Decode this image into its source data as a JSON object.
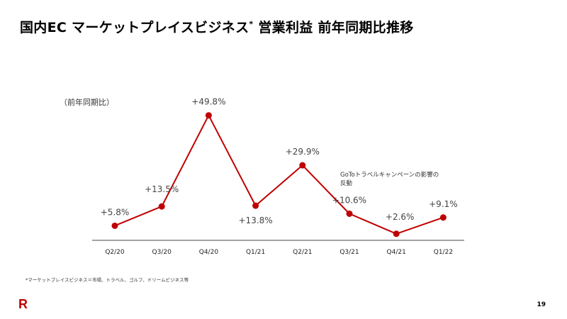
{
  "slide": {
    "title": "国内EC マーケットプレイスビジネス",
    "title_mark": "*",
    "title_suffix": " 営業利益 前年同期比推移",
    "footnote": "*マーケットプレイスビジネス＝市場、トラベル、ゴルフ、ドリームビジネス等",
    "page_number": "19",
    "logo": "R"
  },
  "chart_data": {
    "type": "line",
    "unit_label": "（前年同期比）",
    "categories": [
      "Q2/20",
      "Q3/20",
      "Q4/20",
      "Q1/21",
      "Q2/21",
      "Q3/21",
      "Q4/21",
      "Q1/22"
    ],
    "values": [
      5.8,
      13.5,
      49.8,
      13.8,
      29.9,
      10.6,
      2.6,
      9.1
    ],
    "data_labels": [
      "+5.8%",
      "+13.5%",
      "+49.8%",
      "+13.8%",
      "+29.9%",
      "+10.6%",
      "+2.6%",
      "+9.1%"
    ],
    "annotation": "GoToトラベルキャンペーンの影響の反動",
    "ylim": [
      0,
      50
    ],
    "color": "#bf0000",
    "grid": false
  }
}
